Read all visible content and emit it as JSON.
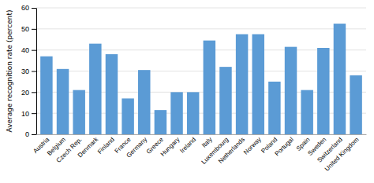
{
  "chart_data": {
    "type": "bar",
    "categories": [
      "Austria",
      "Belgium",
      "Czech Rep.",
      "Denmark",
      "Finland",
      "France",
      "Germany",
      "Greece",
      "Hungary",
      "Ireland",
      "Italy",
      "Luxembourg",
      "Netherlands",
      "Norway",
      "Poland",
      "Portugal",
      "Spain",
      "Sweden",
      "Switzerland",
      "United Kingdom"
    ],
    "values": [
      37,
      31,
      21,
      43,
      38,
      17,
      30.5,
      11.5,
      20,
      20,
      44.5,
      32,
      47.5,
      47.5,
      25,
      41.5,
      21,
      41,
      52.5,
      28
    ],
    "color": "#5B9BD5",
    "ylabel": "Average recognition rate (percent)",
    "ylim": [
      0,
      60
    ],
    "yticks": [
      0,
      10,
      20,
      30,
      40,
      50,
      60
    ],
    "grid": true
  }
}
